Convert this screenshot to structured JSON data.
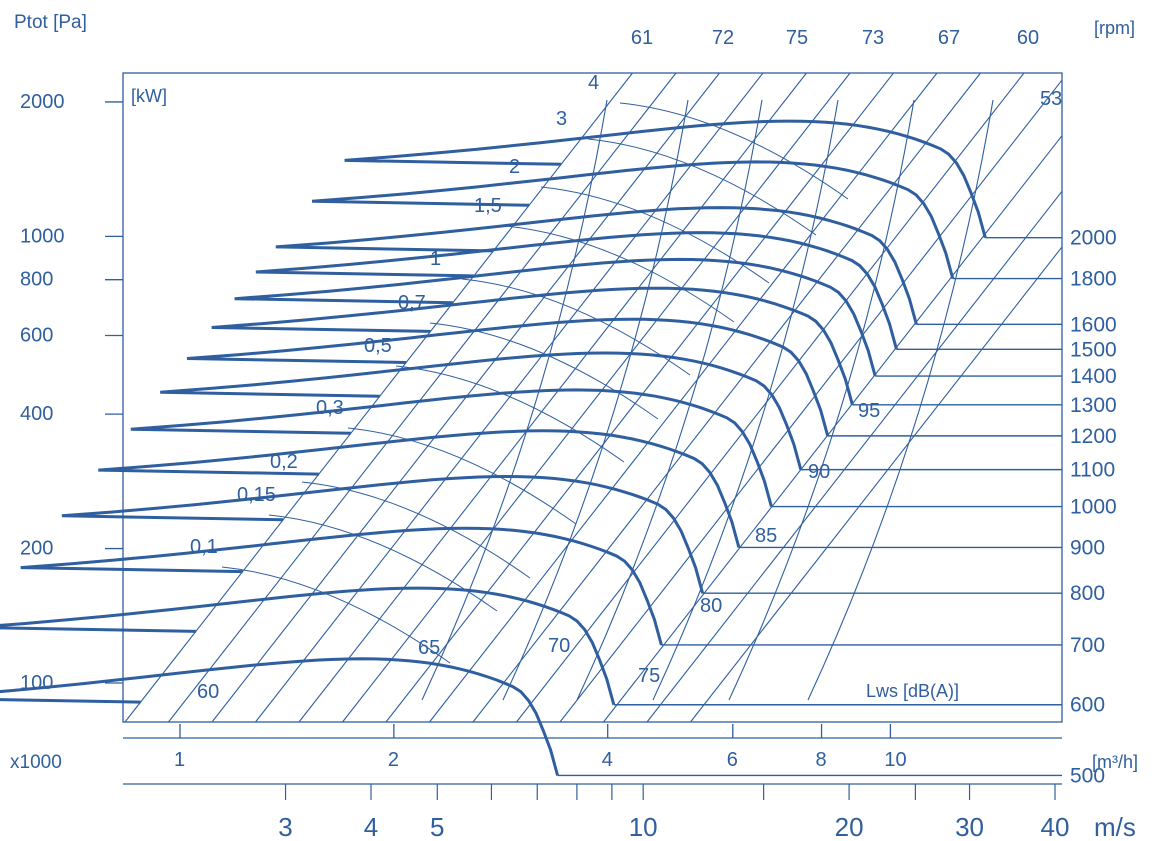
{
  "chart_data": {
    "type": "line",
    "title": "",
    "y_axis": {
      "label": "Ptot [Pa]",
      "scale": "log",
      "ticks": [
        "2000",
        "1000",
        "800",
        "600",
        "400",
        "200",
        "100"
      ]
    },
    "x_axis_flow": {
      "label": "[m³/h]",
      "prefix": "x1000",
      "scale": "log",
      "ticks": [
        "1",
        "2",
        "4",
        "6",
        "8",
        "10"
      ]
    },
    "x_axis_velocity": {
      "label": "m/s",
      "scale": "log",
      "ticks": [
        "3",
        "4",
        "5",
        "10",
        "20",
        "30",
        "40"
      ]
    },
    "power_label": "[kW]",
    "power_values": [
      "4",
      "3",
      "2",
      "1,5",
      "1",
      "0,7",
      "0,5",
      "0,3",
      "0,2",
      "0,15",
      "0,1"
    ],
    "rpm_label": "[rpm]",
    "speeds_rpm": [
      "2000",
      "1800",
      "1600",
      "1500",
      "1400",
      "1300",
      "1200",
      "1100",
      "1000",
      "900",
      "800",
      "700",
      "600",
      "500"
    ],
    "efficiency_top": [
      "61",
      "72",
      "75",
      "73",
      "67",
      "60"
    ],
    "efficiency_corner": "53",
    "sound_label": "Lws [dB(A)]",
    "sound_levels": [
      "95",
      "90",
      "85",
      "80",
      "75",
      "70",
      "65",
      "60"
    ],
    "grid": true
  }
}
